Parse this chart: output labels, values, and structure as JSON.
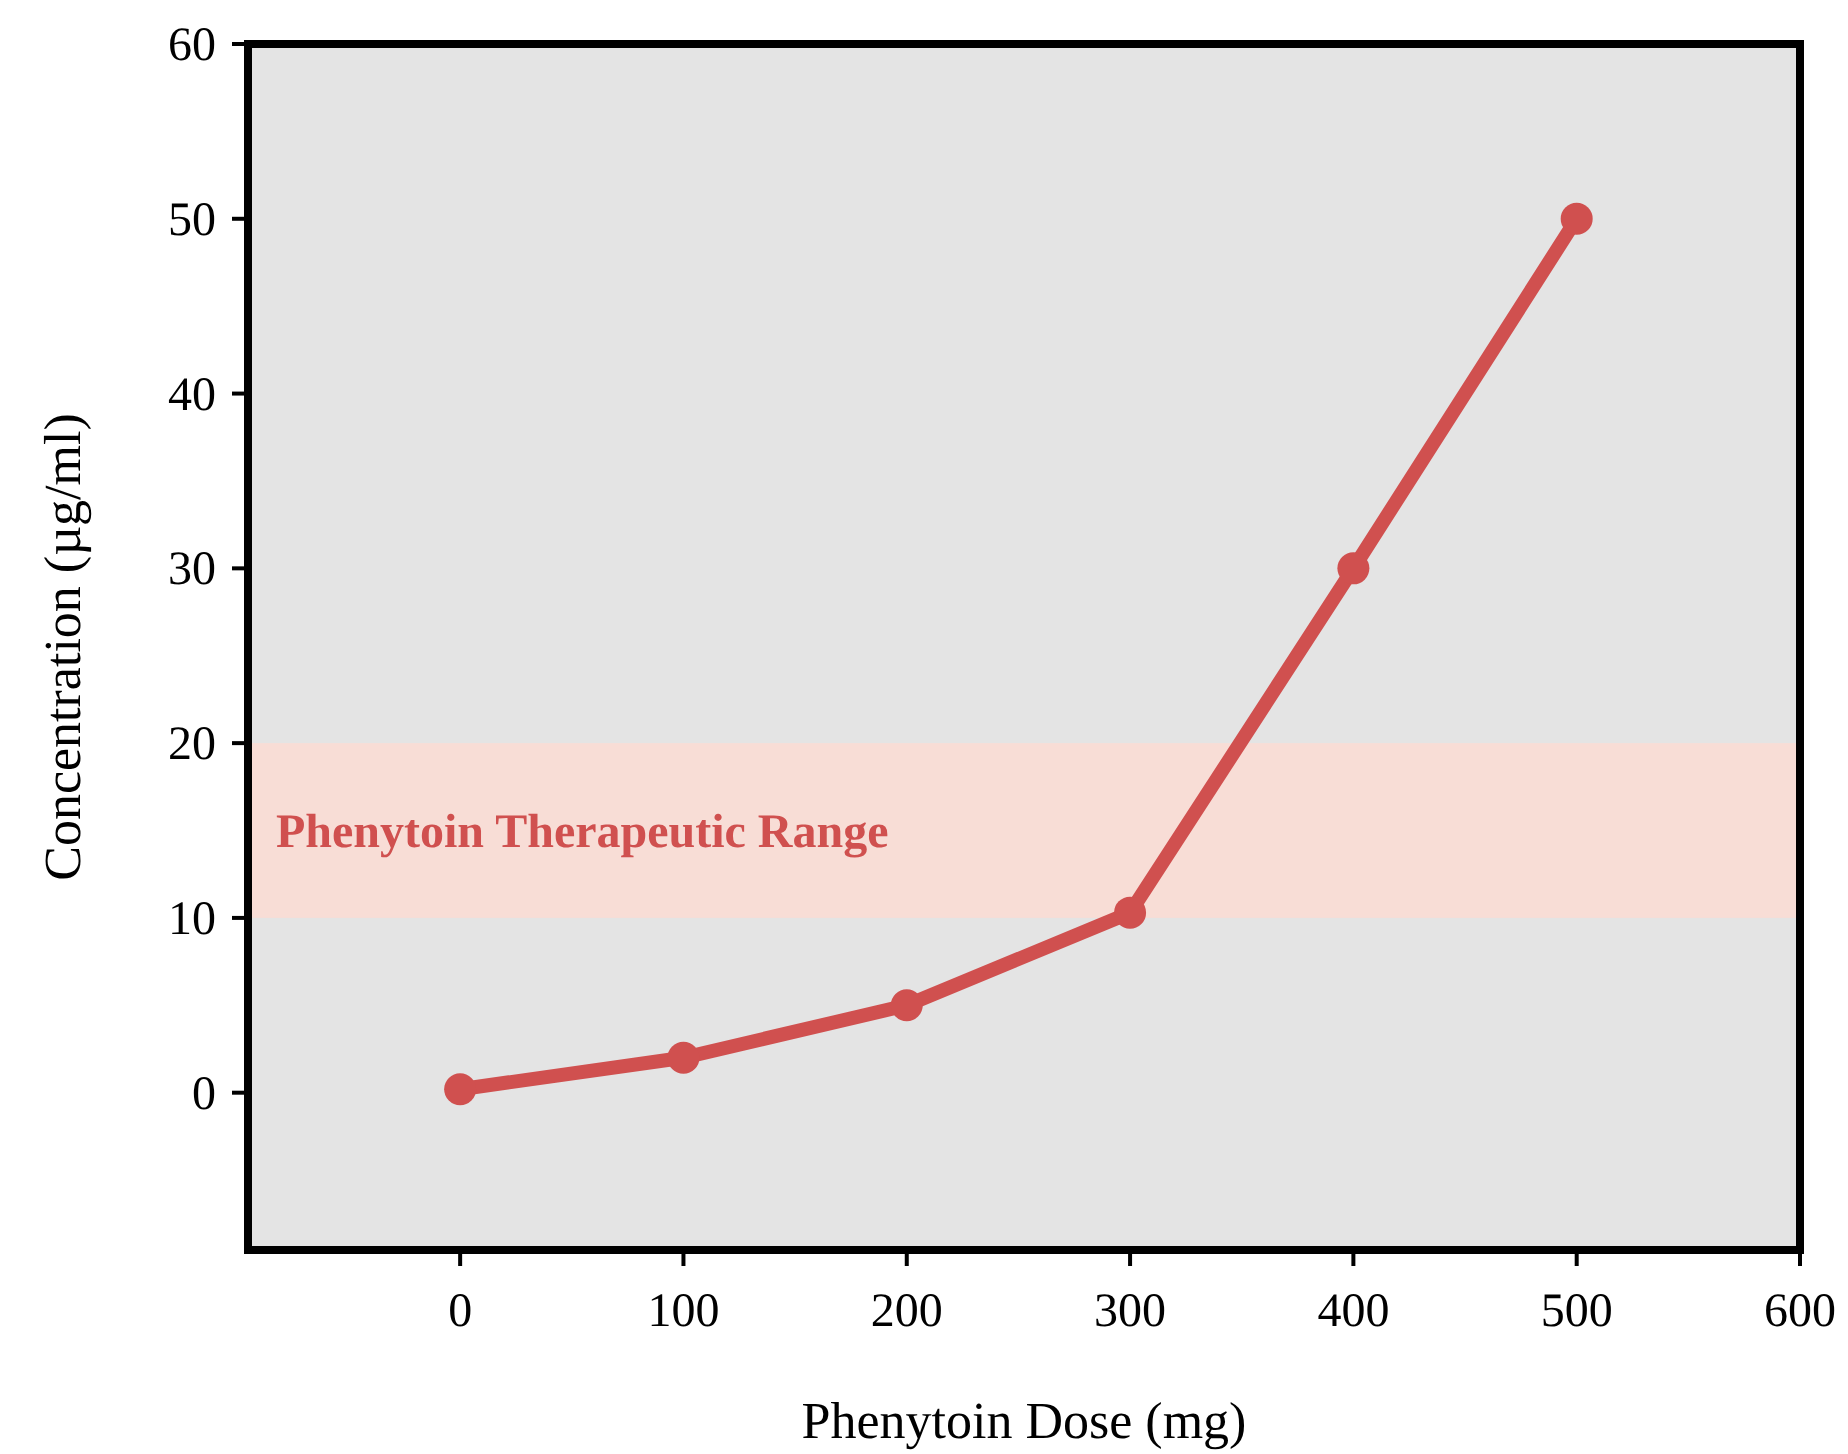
{
  "chart_data": {
    "type": "line",
    "xlabel": "Phenytoin Dose (mg)",
    "ylabel": "Concentration (µg/ml)",
    "x": [
      0,
      100,
      200,
      300,
      400,
      500
    ],
    "series": [
      {
        "color": "#d0504f",
        "values": [
          0.2,
          2,
          5,
          10.3,
          30,
          50
        ]
      }
    ],
    "xlim": [
      -95,
      600
    ],
    "xticks": [
      0,
      100,
      200,
      300,
      400,
      500,
      600
    ],
    "ylim": [
      -9,
      60
    ],
    "yticks": [
      0,
      10,
      20,
      30,
      40,
      50,
      60
    ],
    "bands": [
      {
        "axis": "y",
        "from": 10,
        "to": 20,
        "label": "Phenytoin Therapeutic Range",
        "color": "#f8ddd6"
      }
    ],
    "marker": "circle",
    "line_style": "solid"
  }
}
